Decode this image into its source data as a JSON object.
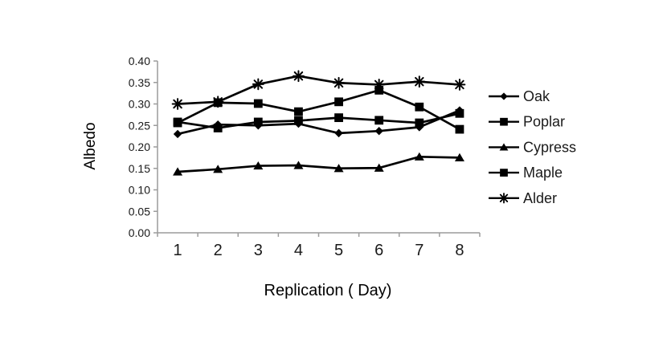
{
  "chart_data": {
    "type": "line",
    "title": "",
    "xlabel": "Replication ( Day)",
    "ylabel": "Albedo",
    "x_tick_labels": [
      "1",
      "2",
      "3",
      "4",
      "5",
      "6",
      "7",
      "8"
    ],
    "y_tick_labels": [
      "0.00",
      "0.05",
      "0.10",
      "0.15",
      "0.20",
      "0.25",
      "0.30",
      "0.35",
      "0.40"
    ],
    "ylim": [
      0.0,
      0.4
    ],
    "ytick_step": 0.05,
    "grid": false,
    "legend_position": "right",
    "axis_color": "#9c9c9c",
    "text_color": "#1a1a1a",
    "series_color": "#000000",
    "series": [
      {
        "name": "Oak",
        "marker": "diamond",
        "values": [
          0.23,
          0.252,
          0.25,
          0.254,
          0.232,
          0.237,
          0.246,
          0.285
        ]
      },
      {
        "name": "Poplar",
        "marker": "square",
        "values": [
          0.256,
          0.303,
          0.301,
          0.282,
          0.305,
          0.332,
          0.293,
          0.241
        ]
      },
      {
        "name": "Cypress",
        "marker": "triangle",
        "values": [
          0.142,
          0.148,
          0.156,
          0.157,
          0.15,
          0.151,
          0.177,
          0.175
        ]
      },
      {
        "name": "Maple",
        "marker": "square",
        "values": [
          0.258,
          0.244,
          0.258,
          0.261,
          0.268,
          0.262,
          0.256,
          0.278
        ]
      },
      {
        "name": "Alder",
        "marker": "asterisk",
        "values": [
          0.3,
          0.305,
          0.346,
          0.365,
          0.349,
          0.345,
          0.352,
          0.345
        ]
      }
    ]
  }
}
